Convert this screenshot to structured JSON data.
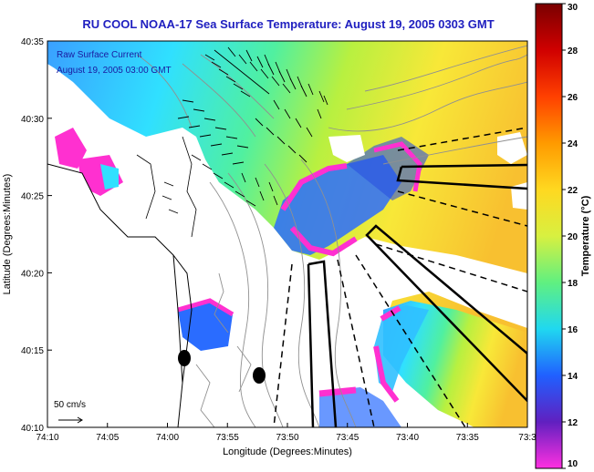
{
  "title": "RU COOL  NOAA-17  Sea Surface Temperature:  August 19, 2005 0303 GMT",
  "annotation": {
    "line1": "Raw Surface Current",
    "line2": "August 19, 2005 03:00 GMT"
  },
  "scale_label": "50 cm/s",
  "axes": {
    "xlabel": "Longitude (Degrees:Minutes)",
    "ylabel": "Latitude (Degrees:Minutes)",
    "x_ticks": [
      "74:10",
      "74:05",
      "74:00",
      "73:55",
      "73:50",
      "73:45",
      "73:40",
      "73:35",
      "73:3"
    ],
    "y_ticks": [
      "40:35",
      "40:30",
      "40:25",
      "40:20",
      "40:15",
      "40:10"
    ]
  },
  "colorbar": {
    "label": "Temperature (°C)",
    "ticks": [
      "30",
      "28",
      "26",
      "24",
      "22",
      "20",
      "18",
      "16",
      "14",
      "12",
      "10"
    ],
    "min": 10,
    "max": 30
  },
  "colors": {
    "title": "#2020c0",
    "land": "#ffffff",
    "cloud": "#ffffff"
  }
}
